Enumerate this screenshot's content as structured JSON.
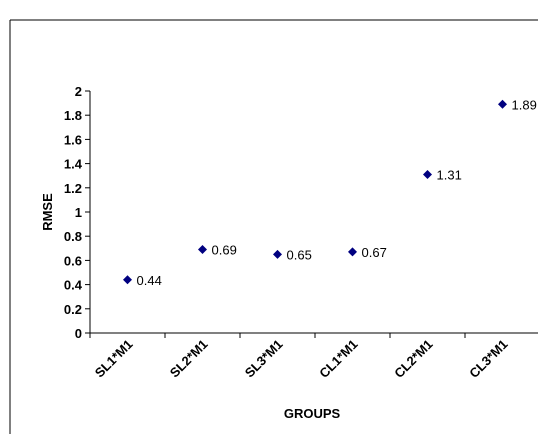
{
  "chart_data": {
    "type": "scatter",
    "title": "",
    "xlabel": "GROUPS",
    "ylabel": "RMSE",
    "categories": [
      "SL1*M1",
      "SL2*M1",
      "SL3*M1",
      "CL1*M1",
      "CL2*M1",
      "CL3*M1"
    ],
    "values": [
      0.44,
      0.69,
      0.65,
      0.67,
      1.31,
      1.89
    ],
    "data_labels": [
      "0.44",
      "0.69",
      "0.65",
      "0.67",
      "1.31",
      "1.89"
    ],
    "yticks": [
      "0",
      "0.2",
      "0.4",
      "0.6",
      "0.8",
      "1",
      "1.2",
      "1.4",
      "1.6",
      "1.8",
      "2"
    ],
    "ylim": [
      0,
      2
    ],
    "grid": false,
    "legend": "none",
    "marker": "diamond",
    "marker_color": "#000080",
    "axis_color": "#000000"
  }
}
